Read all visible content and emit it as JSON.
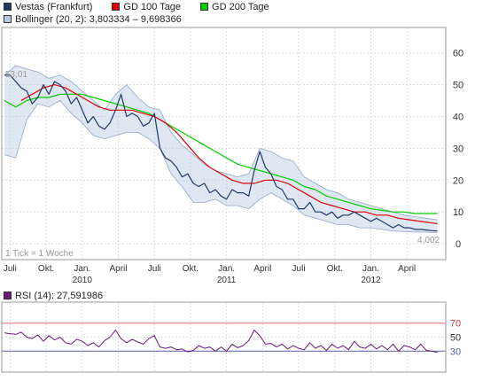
{
  "legend": {
    "price": {
      "label": "Vestas (Frankfurt)",
      "color": "#1f3a66"
    },
    "gd100": {
      "label": "GD 100 Tage",
      "color": "#e00000"
    },
    "gd200": {
      "label": "GD 200 Tage",
      "color": "#00cc00"
    },
    "bollinger": {
      "label": "Bollinger (20, 2): 3,803334 – 9,698366",
      "color": "#b7cbe3"
    },
    "rsi": {
      "label": "RSI (14): 27,591986",
      "color": "#6a1a7a"
    }
  },
  "annotations": {
    "first_value": "53,01",
    "last_value": "4,002",
    "tick_note": "1 Tick = 1 Woche"
  },
  "chart_data": [
    {
      "type": "line",
      "ylim": [
        -5,
        68
      ],
      "yticks": [
        0,
        10,
        20,
        30,
        40,
        50,
        60
      ],
      "x_ticks": [
        {
          "label": "Juli",
          "x": 0
        },
        {
          "label": "Okt.",
          "x": 13
        },
        {
          "label": "Jan.",
          "x": 26
        },
        {
          "label": "April",
          "x": 39
        },
        {
          "label": "Juli",
          "x": 52
        },
        {
          "label": "Okt.",
          "x": 65
        },
        {
          "label": "Jan.",
          "x": 78
        },
        {
          "label": "April",
          "x": 91
        },
        {
          "label": "Juli",
          "x": 104
        },
        {
          "label": "Okt.",
          "x": 117
        },
        {
          "label": "Jan.",
          "x": 130
        },
        {
          "label": "April",
          "x": 143
        }
      ],
      "year_labels": [
        {
          "label": "2010",
          "x": 26
        },
        {
          "label": "2011",
          "x": 78
        },
        {
          "label": "2012",
          "x": 130
        }
      ],
      "x_range": [
        -3,
        157
      ],
      "grid": true,
      "series": [
        {
          "name": "Vestas (Frankfurt)",
          "color": "#1f3a66",
          "x": [
            -2,
            0,
            2,
            4,
            6,
            8,
            10,
            12,
            14,
            16,
            18,
            20,
            22,
            24,
            26,
            28,
            30,
            32,
            34,
            36,
            38,
            40,
            42,
            44,
            46,
            48,
            50,
            52,
            54,
            56,
            58,
            60,
            62,
            64,
            66,
            68,
            70,
            72,
            74,
            76,
            78,
            80,
            82,
            84,
            86,
            88,
            90,
            92,
            94,
            96,
            98,
            100,
            102,
            104,
            106,
            108,
            110,
            112,
            114,
            116,
            118,
            120,
            122,
            124,
            126,
            128,
            130,
            132,
            134,
            136,
            138,
            140,
            142,
            144,
            146,
            148,
            150,
            152,
            154
          ],
          "y": [
            53,
            53,
            51,
            49,
            48,
            44,
            46,
            50,
            47,
            51,
            50,
            48,
            44,
            46,
            42,
            38,
            40,
            37,
            36,
            38,
            42,
            47,
            40,
            41,
            40,
            37,
            38,
            41,
            30,
            27,
            26,
            24,
            21,
            22,
            19,
            18,
            19,
            16,
            17,
            15,
            14,
            17,
            16,
            16,
            15,
            23,
            29,
            24,
            22,
            18,
            17,
            14,
            14,
            11,
            11,
            13,
            10,
            10,
            9,
            10,
            8,
            9,
            9,
            10,
            9,
            8,
            7,
            8,
            7,
            6,
            5,
            6,
            5,
            5,
            4.5,
            4.5,
            4.3,
            4.1,
            4.0
          ]
        },
        {
          "name": "GD 100 Tage",
          "color": "#e00000",
          "x": [
            4,
            8,
            12,
            16,
            20,
            24,
            28,
            32,
            36,
            40,
            44,
            48,
            52,
            56,
            60,
            64,
            68,
            72,
            76,
            80,
            84,
            88,
            92,
            96,
            100,
            104,
            108,
            112,
            116,
            120,
            124,
            128,
            132,
            136,
            140,
            144,
            148,
            152,
            154
          ],
          "y": [
            45,
            47,
            49,
            50,
            49,
            47,
            45,
            43,
            42,
            42,
            42,
            41,
            40,
            38,
            35,
            31,
            27,
            24,
            22,
            20,
            19,
            19,
            20,
            20,
            19,
            17,
            15,
            13,
            12,
            11,
            10,
            10,
            9,
            9,
            8,
            7.5,
            7,
            6.5,
            6.3
          ]
        },
        {
          "name": "GD 200 Tage",
          "color": "#00cc00",
          "x": [
            -2,
            2,
            6,
            10,
            14,
            18,
            22,
            26,
            30,
            34,
            38,
            42,
            46,
            50,
            54,
            58,
            62,
            66,
            70,
            74,
            78,
            82,
            86,
            90,
            94,
            98,
            102,
            106,
            110,
            114,
            118,
            122,
            126,
            130,
            134,
            138,
            142,
            146,
            150,
            154
          ],
          "y": [
            45,
            43,
            45,
            46,
            46,
            47,
            47,
            47,
            46,
            45,
            44,
            43,
            42,
            41,
            39,
            37,
            35,
            33,
            31,
            29,
            27,
            25,
            24,
            23,
            22,
            21,
            20,
            18,
            17,
            15,
            14,
            13,
            12,
            11,
            10.5,
            10,
            10,
            9.5,
            9.5,
            9.5
          ]
        },
        {
          "name": "Bollinger upper",
          "color": "#8fa8c8",
          "x": [
            -2,
            2,
            6,
            10,
            14,
            18,
            22,
            26,
            30,
            34,
            38,
            42,
            46,
            50,
            54,
            58,
            62,
            66,
            70,
            74,
            78,
            82,
            86,
            90,
            94,
            98,
            102,
            106,
            110,
            114,
            118,
            122,
            126,
            130,
            134,
            138,
            142,
            146,
            150,
            154
          ],
          "y": [
            53,
            56,
            55,
            54,
            52,
            53,
            51,
            48,
            45,
            42,
            47,
            50,
            46,
            43,
            42,
            35,
            31,
            28,
            25,
            23,
            22,
            21,
            22,
            30,
            29,
            27,
            26,
            21,
            19,
            17,
            16,
            14,
            13,
            12,
            11,
            10,
            9,
            8.5,
            8,
            7.5
          ]
        },
        {
          "name": "Bollinger lower",
          "color": "#8fa8c8",
          "x": [
            -2,
            2,
            6,
            10,
            14,
            18,
            22,
            26,
            30,
            34,
            38,
            42,
            46,
            50,
            54,
            58,
            62,
            66,
            70,
            74,
            78,
            82,
            86,
            90,
            94,
            98,
            102,
            106,
            110,
            114,
            118,
            122,
            126,
            130,
            134,
            138,
            142,
            146,
            150,
            154
          ],
          "y": [
            28,
            27,
            39,
            44,
            43,
            45,
            41,
            38,
            34,
            33,
            34,
            35,
            35,
            33,
            30,
            22,
            18,
            13,
            13,
            14,
            12,
            12,
            11,
            14,
            16,
            14,
            12,
            9,
            8,
            7,
            6,
            6,
            5,
            5,
            4.5,
            4,
            3.8,
            3.7,
            3.6,
            3.5
          ]
        }
      ]
    },
    {
      "type": "line",
      "ylim": [
        0,
        100
      ],
      "yticks": [
        30,
        50,
        70
      ],
      "reference_lines": [
        30,
        70
      ],
      "x_range": [
        -3,
        157
      ],
      "series": [
        {
          "name": "RSI (14)",
          "color": "#6a1a7a",
          "x": [
            -2,
            0,
            2,
            4,
            6,
            8,
            10,
            12,
            14,
            16,
            18,
            20,
            22,
            24,
            26,
            28,
            30,
            32,
            34,
            36,
            38,
            40,
            42,
            44,
            46,
            48,
            50,
            52,
            54,
            56,
            58,
            60,
            62,
            64,
            66,
            68,
            70,
            72,
            74,
            76,
            78,
            80,
            82,
            84,
            86,
            88,
            90,
            92,
            94,
            96,
            98,
            100,
            102,
            104,
            106,
            108,
            110,
            112,
            114,
            116,
            118,
            120,
            122,
            124,
            126,
            128,
            130,
            132,
            134,
            136,
            138,
            140,
            142,
            144,
            146,
            148,
            150,
            152,
            154
          ],
          "y": [
            56,
            55,
            54,
            57,
            50,
            48,
            53,
            44,
            52,
            46,
            50,
            42,
            40,
            47,
            44,
            38,
            42,
            36,
            45,
            50,
            60,
            48,
            42,
            47,
            43,
            40,
            48,
            52,
            36,
            34,
            36,
            32,
            33,
            29,
            31,
            38,
            34,
            36,
            30,
            36,
            30,
            40,
            35,
            38,
            45,
            60,
            52,
            40,
            41,
            36,
            40,
            33,
            38,
            34,
            32,
            42,
            34,
            38,
            31,
            40,
            34,
            38,
            32,
            44,
            36,
            34,
            40,
            33,
            38,
            32,
            40,
            30,
            38,
            36,
            32,
            40,
            31,
            30,
            28
          ]
        }
      ]
    }
  ]
}
